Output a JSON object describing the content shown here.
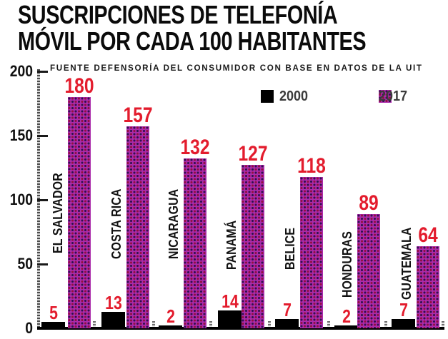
{
  "title": {
    "line1": "SUSCRIPCIONES DE TELEFONÍA",
    "line2": "MÓVIL POR CADA 100 HABITANTES"
  },
  "source": "FUENTE DEFENSORÍA DEL CONSUMIDOR CON BASE EN DATOS DE LA UIT",
  "colors": {
    "value_label": "#e31c2d",
    "bar_2000": "#000000",
    "bar_2017_base": "#AB2CAB",
    "bar_2017_dot_violet": "#30104f",
    "bar_2017_dot_crimson": "#92103f",
    "axis": "#000000"
  },
  "chart_data": {
    "type": "bar",
    "title": "SUSCRIPCIONES DE TELEFONÍA MÓVIL POR CADA 100 HABITANTES",
    "source": "FUENTE DEFENSORÍA DEL CONSUMIDOR CON BASE EN DATOS DE LA UIT",
    "categories": [
      "EL SALVADOR",
      "COSTA RICA",
      "NICARAGUA",
      "PANAMÁ",
      "BELICE",
      "HONDURAS",
      "GUATEMALA"
    ],
    "series": [
      {
        "name": "2000",
        "values": [
          5,
          13,
          2,
          14,
          7,
          2,
          7
        ]
      },
      {
        "name": "2017",
        "values": [
          180,
          157,
          132,
          127,
          118,
          89,
          64
        ]
      }
    ],
    "xlabel": "",
    "ylabel": "",
    "ylim": [
      0,
      200
    ],
    "yticks": [
      0,
      50,
      100,
      150,
      200
    ],
    "grid": false,
    "legend_position": "top"
  }
}
